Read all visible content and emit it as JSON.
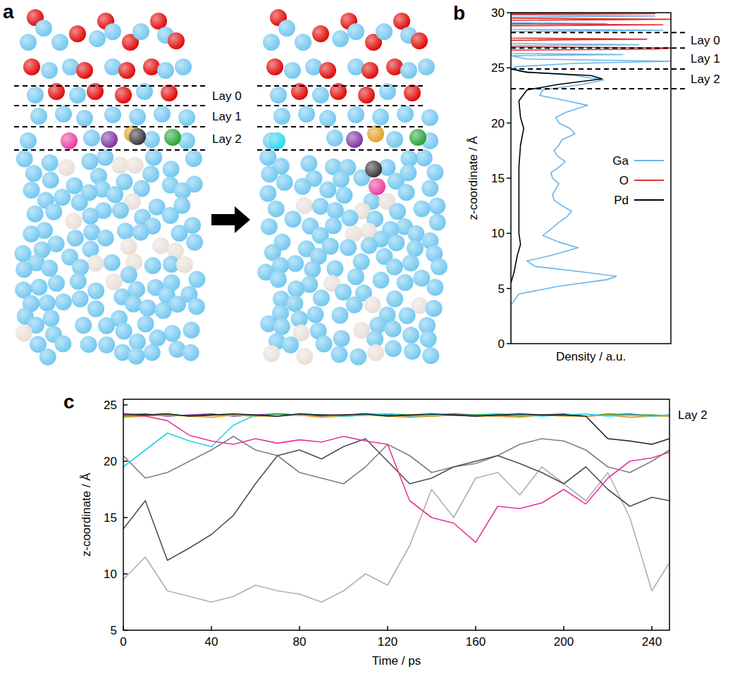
{
  "panel_a": {
    "letter": "a",
    "layer_labels": [
      "Lay 0",
      "Lay 1",
      "Lay 2"
    ]
  },
  "chart_data": [
    {
      "type": "line",
      "letter": "b",
      "orientation": "horizontal",
      "x_label": "Density / a.u.",
      "y_label": "z-coordinate / Å",
      "xlim": [
        0,
        1
      ],
      "ylim": [
        0,
        30
      ],
      "yticks": [
        0,
        5,
        10,
        15,
        20,
        25,
        30
      ],
      "tick_labels": "y",
      "grid": false,
      "legend": "right",
      "layer_labels": [
        "Lay 0",
        "Lay 1",
        "Lay 2"
      ],
      "layer_bounds": [
        28.2,
        26.8,
        24.9,
        23.1
      ],
      "series": [
        {
          "name": "Ga",
          "color": "#6ab4e8",
          "y": [
            0,
            3.5,
            4.5,
            5.2,
            5.8,
            6.1,
            6.5,
            7,
            7.5,
            8,
            8.7,
            9.2,
            9.8,
            10.5,
            11,
            11.5,
            12,
            12.5,
            13,
            13.5,
            14,
            14.5,
            15,
            15.5,
            16,
            16.5,
            17,
            17.5,
            18,
            18.5,
            19,
            19.5,
            20,
            20.5,
            21,
            21.6,
            22,
            22.5,
            23,
            23.5,
            23.9,
            24.3,
            24.7,
            25.1,
            25.4,
            25.6,
            25.8,
            26.1,
            26.2,
            26.3,
            27.0,
            27.1,
            27.2,
            28.3,
            28.4,
            28.5,
            28.9,
            29.0,
            29.1,
            29.6,
            29.7,
            29.8,
            30
          ],
          "values": [
            0,
            0,
            0.05,
            0.3,
            0.6,
            0.66,
            0.45,
            0.15,
            0.1,
            0.25,
            0.42,
            0.3,
            0.2,
            0.26,
            0.3,
            0.35,
            0.38,
            0.32,
            0.27,
            0.26,
            0.28,
            0.3,
            0.26,
            0.25,
            0.3,
            0.34,
            0.29,
            0.27,
            0.3,
            0.32,
            0.4,
            0.37,
            0.3,
            0.28,
            0.35,
            0.48,
            0.35,
            0.18,
            0.2,
            0.45,
            0.58,
            0.4,
            0.05,
            0.02,
            0.4,
            1.0,
            0.1,
            0,
            0.7,
            0,
            0,
            0.8,
            0,
            0,
            0.95,
            0,
            0,
            0.6,
            0,
            0,
            0.9,
            0,
            0
          ]
        },
        {
          "name": "O",
          "color": "#e03030",
          "y": [
            26.6,
            26.7,
            26.8,
            26.9,
            27.5,
            27.6,
            27.7,
            28.8,
            28.9,
            29.0,
            29.3,
            29.4,
            29.5,
            29.85,
            29.9,
            29.95
          ],
          "values": [
            0,
            0.9,
            1.0,
            0,
            0,
            0.85,
            0,
            0,
            0.95,
            0,
            0,
            1.0,
            0,
            0,
            0.9,
            0
          ]
        },
        {
          "name": "Pd",
          "color": "#000000",
          "y": [
            5.5,
            6.5,
            8,
            9,
            10,
            12,
            14,
            16,
            18,
            19.5,
            20.5,
            22,
            23,
            23.5,
            24,
            24.3,
            24.6,
            24.9
          ],
          "values": [
            0,
            0.02,
            0.04,
            0.06,
            0.05,
            0.05,
            0.05,
            0.05,
            0.06,
            0.08,
            0.06,
            0.05,
            0.1,
            0.3,
            0.57,
            0.5,
            0.1,
            0
          ]
        }
      ]
    },
    {
      "type": "line",
      "letter": "c",
      "x_label": "Time / ps",
      "y_label": "z-coordinate / Å",
      "xlim": [
        0,
        248
      ],
      "xticks": [
        0,
        40,
        80,
        120,
        160,
        200,
        240
      ],
      "ylim": [
        5,
        25.5
      ],
      "yticks": [
        5,
        10,
        15,
        20,
        25
      ],
      "grid": false,
      "annotation": "Lay 2",
      "annotation_y": 24.1,
      "x": [
        0,
        10,
        20,
        30,
        40,
        50,
        60,
        70,
        80,
        90,
        100,
        110,
        120,
        130,
        140,
        150,
        160,
        170,
        180,
        190,
        200,
        210,
        220,
        230,
        240,
        248
      ],
      "series": [
        {
          "color": "#b0b0b0",
          "values": [
            9.5,
            11.5,
            8.5,
            8.0,
            7.5,
            8.0,
            9.0,
            8.5,
            8.2,
            7.5,
            8.5,
            10.0,
            9.0,
            12.5,
            17.5,
            15.0,
            18.5,
            19.0,
            17.0,
            19.5,
            18.0,
            16.5,
            19.0,
            15.0,
            8.5,
            11.0
          ]
        },
        {
          "color": "#808080",
          "values": [
            20.5,
            18.5,
            19.0,
            20.0,
            21.0,
            22.2,
            21.0,
            20.5,
            19.0,
            18.5,
            18.0,
            19.5,
            21.5,
            20.5,
            19.0,
            19.5,
            19.8,
            20.5,
            21.5,
            22.0,
            21.8,
            21.0,
            19.5,
            19.0,
            20.0,
            21.0
          ]
        },
        {
          "color": "#505050",
          "values": [
            14.0,
            16.5,
            11.2,
            12.3,
            13.5,
            15.2,
            18.0,
            20.5,
            21.0,
            20.2,
            21.3,
            22.0,
            20.0,
            18.0,
            18.5,
            19.5,
            20.0,
            20.5,
            19.8,
            19.0,
            18.0,
            19.5,
            17.5,
            16.0,
            16.8,
            16.5
          ]
        },
        {
          "color": "#7a2ea0",
          "values": [
            24.1,
            24.2,
            24.0,
            24.1,
            24.2,
            24.0,
            24.1,
            24.2,
            24.1,
            24.0,
            24.1,
            24.2,
            24.1,
            24.0,
            24.1,
            24.2,
            24.1,
            24.0,
            24.1,
            24.1,
            24.2,
            24.0,
            24.1,
            24.2,
            24.0,
            24.1
          ]
        },
        {
          "color": "#22a030",
          "values": [
            24.0,
            24.1,
            24.2,
            24.0,
            24.1,
            24.1,
            24.0,
            24.2,
            24.1,
            24.1,
            24.0,
            24.1,
            24.2,
            24.1,
            24.0,
            24.1,
            24.1,
            24.2,
            24.0,
            24.1,
            24.1,
            24.0,
            24.2,
            24.1,
            24.1,
            24.0
          ]
        },
        {
          "color": "#e8a020",
          "values": [
            23.9,
            24.0,
            24.1,
            24.0,
            23.9,
            24.1,
            24.0,
            24.0,
            24.1,
            23.9,
            24.0,
            24.1,
            24.0,
            23.9,
            24.0,
            24.1,
            24.0,
            24.0,
            23.9,
            24.1,
            24.0,
            24.0,
            24.1,
            23.9,
            24.0,
            24.0
          ]
        },
        {
          "color": "#22d3e6",
          "values": [
            19.5,
            21.0,
            22.5,
            21.8,
            21.3,
            23.2,
            24.1,
            24.0,
            24.2,
            24.1,
            24.0,
            24.1,
            24.2,
            24.0,
            24.1,
            24.1,
            24.0,
            24.2,
            24.1,
            24.0,
            24.1,
            24.2,
            24.0,
            24.1,
            24.0,
            24.1
          ]
        },
        {
          "color": "#e8369a",
          "values": [
            24.1,
            24.0,
            23.6,
            22.3,
            21.8,
            21.5,
            22.0,
            21.6,
            21.9,
            21.7,
            22.2,
            21.8,
            21.5,
            16.5,
            15.0,
            14.5,
            12.8,
            16.0,
            15.8,
            16.3,
            17.5,
            16.2,
            18.5,
            20.0,
            20.3,
            20.8
          ]
        },
        {
          "color": "#202020",
          "values": [
            24.2,
            24.1,
            24.2,
            24.0,
            24.1,
            24.2,
            24.1,
            24.0,
            24.2,
            24.1,
            24.1,
            24.2,
            24.0,
            24.1,
            24.2,
            24.1,
            24.0,
            24.1,
            24.2,
            24.1,
            24.1,
            24.0,
            22.0,
            21.8,
            21.5,
            22.0
          ]
        }
      ]
    }
  ]
}
